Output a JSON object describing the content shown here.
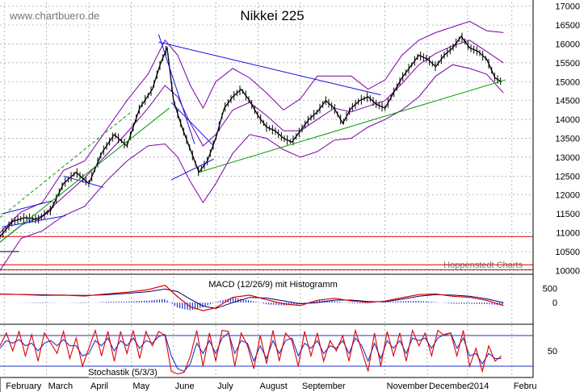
{
  "watermark": "www.chartbuero.de",
  "credit": "Hoppenstedt Charts",
  "colors": {
    "price": "#000000",
    "bollinger": "#7a00a8",
    "trend_blue": "#1010dd",
    "trend_green": "#009900",
    "support_red": "#dd0000",
    "macd": "#dd0000",
    "macd_signal": "#000066",
    "histogram": "#2233cc",
    "stoch_k": "#dd0000",
    "stoch_d": "#2233cc",
    "grid": "#999999"
  },
  "chart_data": [
    {
      "type": "line",
      "title": "Nikkei 225",
      "ylim": [
        9900,
        17100
      ],
      "yticks": [
        10000,
        10500,
        11000,
        11500,
        12000,
        12500,
        13000,
        13500,
        14000,
        14500,
        15000,
        15500,
        16000,
        16500,
        17000
      ],
      "xlim": [
        0,
        12.6
      ],
      "months": [
        {
          "label": "February",
          "x": 0.1
        },
        {
          "label": "March",
          "x": 1.1
        },
        {
          "label": "April",
          "x": 2.1
        },
        {
          "label": "May",
          "x": 3.1
        },
        {
          "label": "June",
          "x": 4.1
        },
        {
          "label": "July",
          "x": 5.1
        },
        {
          "label": "August",
          "x": 6.1
        },
        {
          "label": "September",
          "x": 7.1
        },
        {
          "label": "November",
          "x": 9.1
        },
        {
          "label": "December",
          "x": 10.1
        },
        {
          "label": "2014",
          "x": 11.05
        },
        {
          "label": "Febru",
          "x": 12.1
        }
      ],
      "series": [
        {
          "kind": "price",
          "x": [
            0,
            0.3,
            0.6,
            0.9,
            1.2,
            1.5,
            1.8,
            2.1,
            2.4,
            2.7,
            3.0,
            3.3,
            3.6,
            3.8,
            3.95,
            4.1,
            4.3,
            4.5,
            4.7,
            4.9,
            5.1,
            5.3,
            5.5,
            5.7,
            5.9,
            6.1,
            6.3,
            6.5,
            6.7,
            6.9,
            7.1,
            7.3,
            7.5,
            7.7,
            7.9,
            8.1,
            8.3,
            8.5,
            8.7,
            8.9,
            9.1,
            9.3,
            9.5,
            9.7,
            9.9,
            10.1,
            10.3,
            10.5,
            10.7,
            10.9,
            11.1,
            11.3,
            11.5,
            11.7,
            11.85
          ],
          "y": [
            10900,
            11300,
            11400,
            11350,
            11600,
            12300,
            12600,
            12300,
            13100,
            13600,
            13300,
            14300,
            14800,
            15500,
            15900,
            14500,
            13800,
            13200,
            12600,
            12900,
            13500,
            14300,
            14600,
            14800,
            14500,
            14100,
            13800,
            13700,
            13500,
            13400,
            13700,
            14000,
            14200,
            14500,
            14300,
            13900,
            14300,
            14500,
            14600,
            14400,
            14300,
            14700,
            15100,
            15400,
            15700,
            15600,
            15400,
            15700,
            15900,
            16200,
            15900,
            15800,
            15600,
            15100,
            15000
          ]
        },
        {
          "kind": "bollinger-upper",
          "x": [
            0,
            0.5,
            1.0,
            1.5,
            2.0,
            2.5,
            3.0,
            3.5,
            3.9,
            4.2,
            4.5,
            4.8,
            5.1,
            5.5,
            5.9,
            6.3,
            6.7,
            7.1,
            7.5,
            7.9,
            8.3,
            8.7,
            9.1,
            9.5,
            9.9,
            10.3,
            10.7,
            11.1,
            11.5,
            11.9
          ],
          "y": [
            11000,
            11550,
            11800,
            12650,
            12900,
            13700,
            14500,
            15200,
            16100,
            15700,
            14900,
            14300,
            15000,
            15350,
            15100,
            14700,
            14250,
            14550,
            15150,
            15150,
            15150,
            14800,
            15050,
            15700,
            16100,
            16300,
            16450,
            16600,
            16350,
            16300
          ]
        },
        {
          "kind": "bollinger-middle",
          "x": [
            0,
            0.5,
            1.0,
            1.5,
            2.0,
            2.5,
            3.0,
            3.5,
            3.9,
            4.2,
            4.5,
            4.8,
            5.1,
            5.5,
            5.9,
            6.3,
            6.7,
            7.1,
            7.5,
            7.9,
            8.3,
            8.7,
            9.1,
            9.5,
            9.9,
            10.3,
            10.7,
            11.1,
            11.5,
            11.9
          ],
          "y": [
            10750,
            11200,
            11450,
            11950,
            12450,
            13050,
            13650,
            14300,
            14900,
            14600,
            13900,
            13300,
            13600,
            14250,
            14450,
            14100,
            13700,
            13700,
            14000,
            14300,
            14200,
            14350,
            14500,
            14950,
            15450,
            15750,
            15950,
            16100,
            15800,
            15500
          ]
        },
        {
          "kind": "bollinger-lower",
          "x": [
            0,
            0.5,
            1.0,
            1.5,
            2.0,
            2.5,
            3.0,
            3.5,
            3.9,
            4.2,
            4.5,
            4.8,
            5.1,
            5.5,
            5.9,
            6.3,
            6.7,
            7.1,
            7.5,
            7.9,
            8.3,
            8.7,
            9.1,
            9.5,
            9.9,
            10.3,
            10.7,
            11.1,
            11.5,
            11.9
          ],
          "y": [
            10000,
            10850,
            11050,
            11450,
            11700,
            12350,
            12900,
            13300,
            13350,
            13000,
            12350,
            11800,
            12300,
            13100,
            13600,
            13500,
            13200,
            13000,
            13150,
            13450,
            13500,
            13800,
            14000,
            14250,
            14600,
            15150,
            15450,
            15350,
            15200,
            14700
          ]
        }
      ],
      "annotations": [
        {
          "kind": "trend_blue",
          "from": [
            3.75,
            16050
          ],
          "to": [
            9.0,
            14650
          ]
        },
        {
          "kind": "trend_blue",
          "from": [
            3.75,
            16250
          ],
          "to": [
            4.6,
            13350
          ]
        },
        {
          "kind": "trend_blue",
          "from": [
            4.05,
            14450
          ],
          "to": [
            5.05,
            13300
          ]
        },
        {
          "kind": "trend_blue",
          "from": [
            4.05,
            12400
          ],
          "to": [
            5.05,
            12950
          ]
        },
        {
          "kind": "trend_blue",
          "from": [
            0.05,
            11500
          ],
          "to": [
            1.25,
            11850
          ]
        },
        {
          "kind": "trend_blue",
          "from": [
            0.05,
            11150
          ],
          "to": [
            1.55,
            11450
          ]
        },
        {
          "kind": "trend_blue",
          "from": [
            1.5,
            12500
          ],
          "to": [
            2.45,
            12200
          ]
        },
        {
          "kind": "trend_green",
          "from": [
            0.0,
            10750
          ],
          "to": [
            4.0,
            14300
          ]
        },
        {
          "kind": "trend_green",
          "from": [
            4.7,
            12600
          ],
          "to": [
            11.95,
            15050
          ]
        },
        {
          "kind": "trend_green_dashed",
          "from": [
            0.0,
            11400
          ],
          "to": [
            3.1,
            14200
          ]
        },
        {
          "kind": "support_red",
          "y": 10900
        },
        {
          "kind": "support_red",
          "y": 10150
        },
        {
          "kind": "support_red",
          "y": 10020
        },
        {
          "kind": "support_black",
          "y": 10500,
          "to_x": 0.45
        }
      ]
    },
    {
      "type": "line",
      "title": "MACD (12/26/9) mit Histogramm",
      "ylim": [
        -750,
        900
      ],
      "yticks": [
        0,
        500
      ],
      "series": [
        {
          "kind": "macd",
          "x": [
            0,
            0.5,
            1.0,
            1.5,
            2.0,
            2.5,
            3.0,
            3.5,
            3.9,
            4.2,
            4.5,
            4.8,
            5.1,
            5.5,
            5.9,
            6.3,
            6.7,
            7.1,
            7.5,
            7.9,
            8.3,
            8.7,
            9.1,
            9.5,
            9.9,
            10.3,
            10.7,
            11.1,
            11.5,
            11.9
          ],
          "y": [
            300,
            280,
            250,
            260,
            230,
            300,
            360,
            450,
            600,
            200,
            -150,
            -280,
            -180,
            180,
            260,
            100,
            -40,
            -100,
            80,
            150,
            60,
            10,
            50,
            170,
            280,
            300,
            220,
            180,
            80,
            -100
          ]
        },
        {
          "kind": "macd-signal",
          "x": [
            0,
            0.5,
            1.0,
            1.5,
            2.0,
            2.5,
            3.0,
            3.5,
            3.9,
            4.2,
            4.5,
            4.8,
            5.1,
            5.5,
            5.9,
            6.3,
            6.7,
            7.1,
            7.5,
            7.9,
            8.3,
            8.7,
            9.1,
            9.5,
            9.9,
            10.3,
            10.7,
            11.1,
            11.5,
            11.9
          ],
          "y": [
            290,
            285,
            270,
            260,
            250,
            270,
            320,
            380,
            470,
            380,
            120,
            -120,
            -200,
            0,
            180,
            160,
            60,
            -40,
            0,
            90,
            90,
            40,
            30,
            120,
            220,
            280,
            260,
            220,
            130,
            0
          ]
        }
      ]
    },
    {
      "type": "line",
      "title": "Stochastik (5/3/3)",
      "ylim": [
        -2,
        102
      ],
      "yticks": [
        50
      ],
      "reference_lines": [
        20,
        80
      ],
      "series": [
        {
          "kind": "stoch-k",
          "x": [
            0,
            0.15,
            0.3,
            0.45,
            0.6,
            0.75,
            0.9,
            1.05,
            1.2,
            1.35,
            1.5,
            1.65,
            1.8,
            1.95,
            2.1,
            2.25,
            2.4,
            2.55,
            2.7,
            2.85,
            3.0,
            3.15,
            3.3,
            3.45,
            3.6,
            3.75,
            3.9,
            4.05,
            4.2,
            4.35,
            4.5,
            4.65,
            4.8,
            4.95,
            5.1,
            5.25,
            5.4,
            5.55,
            5.7,
            5.85,
            6.0,
            6.15,
            6.3,
            6.45,
            6.6,
            6.75,
            6.9,
            7.05,
            7.2,
            7.35,
            7.5,
            7.65,
            7.8,
            7.95,
            8.1,
            8.25,
            8.4,
            8.55,
            8.7,
            8.85,
            9.0,
            9.15,
            9.3,
            9.45,
            9.6,
            9.75,
            9.9,
            10.05,
            10.2,
            10.35,
            10.5,
            10.65,
            10.8,
            10.95,
            11.1,
            11.25,
            11.4,
            11.55,
            11.7,
            11.85
          ],
          "y": [
            60,
            85,
            50,
            88,
            40,
            82,
            30,
            85,
            65,
            45,
            88,
            35,
            75,
            20,
            55,
            90,
            40,
            88,
            30,
            88,
            45,
            90,
            35,
            88,
            60,
            88,
            80,
            10,
            5,
            8,
            40,
            90,
            20,
            85,
            30,
            90,
            88,
            20,
            85,
            60,
            15,
            80,
            25,
            90,
            30,
            85,
            70,
            20,
            88,
            40,
            85,
            30,
            70,
            50,
            80,
            30,
            90,
            50,
            10,
            85,
            20,
            88,
            40,
            85,
            30,
            90,
            60,
            85,
            40,
            90,
            80,
            85,
            40,
            90,
            20,
            55,
            10,
            60,
            30,
            40
          ]
        },
        {
          "kind": "stoch-d",
          "x": [
            0,
            0.15,
            0.3,
            0.45,
            0.6,
            0.75,
            0.9,
            1.05,
            1.2,
            1.35,
            1.5,
            1.65,
            1.8,
            1.95,
            2.1,
            2.25,
            2.4,
            2.55,
            2.7,
            2.85,
            3.0,
            3.15,
            3.3,
            3.45,
            3.6,
            3.75,
            3.9,
            4.05,
            4.2,
            4.35,
            4.5,
            4.65,
            4.8,
            4.95,
            5.1,
            5.25,
            5.4,
            5.55,
            5.7,
            5.85,
            6.0,
            6.15,
            6.3,
            6.45,
            6.6,
            6.75,
            6.9,
            7.05,
            7.2,
            7.35,
            7.5,
            7.65,
            7.8,
            7.95,
            8.1,
            8.25,
            8.4,
            8.55,
            8.7,
            8.85,
            9.0,
            9.15,
            9.3,
            9.45,
            9.6,
            9.75,
            9.9,
            10.05,
            10.2,
            10.35,
            10.5,
            10.65,
            10.8,
            10.95,
            11.1,
            11.25,
            11.4,
            11.55,
            11.7,
            11.85
          ],
          "y": [
            55,
            70,
            65,
            72,
            60,
            65,
            50,
            65,
            70,
            60,
            72,
            60,
            60,
            40,
            45,
            70,
            60,
            75,
            50,
            70,
            60,
            75,
            55,
            70,
            65,
            78,
            82,
            40,
            15,
            10,
            25,
            65,
            45,
            70,
            45,
            75,
            85,
            45,
            70,
            65,
            30,
            60,
            35,
            70,
            45,
            70,
            75,
            40,
            65,
            55,
            70,
            45,
            60,
            55,
            70,
            45,
            75,
            60,
            30,
            65,
            35,
            70,
            55,
            70,
            45,
            75,
            70,
            75,
            55,
            75,
            82,
            85,
            55,
            75,
            40,
            45,
            25,
            45,
            35,
            35
          ]
        }
      ]
    }
  ]
}
